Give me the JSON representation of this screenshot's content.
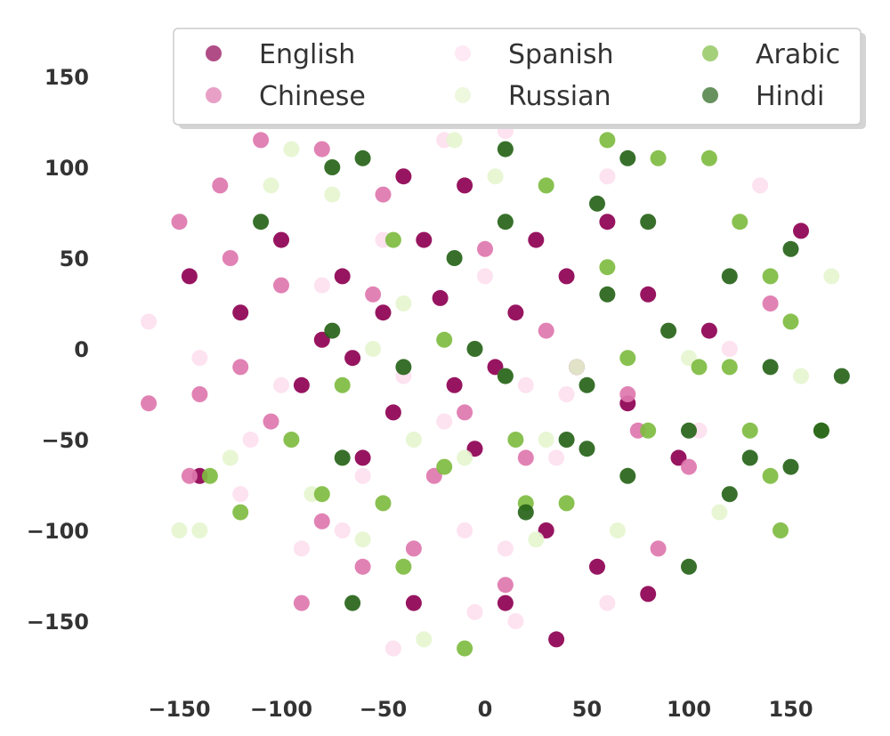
{
  "chart_data": {
    "type": "scatter",
    "title": "",
    "xlabel": "",
    "ylabel": "",
    "xlim": [
      -175,
      185
    ],
    "ylim": [
      -180,
      165
    ],
    "grid": false,
    "legend_position": "top",
    "x_ticks": [
      {
        "value": -150,
        "label": "−150"
      },
      {
        "value": -100,
        "label": "−100"
      },
      {
        "value": -50,
        "label": "−50"
      },
      {
        "value": 0,
        "label": "0"
      },
      {
        "value": 50,
        "label": "50"
      },
      {
        "value": 100,
        "label": "100"
      },
      {
        "value": 150,
        "label": "150"
      }
    ],
    "y_ticks": [
      {
        "value": 150,
        "label": "150"
      },
      {
        "value": 100,
        "label": "100"
      },
      {
        "value": 50,
        "label": "50"
      },
      {
        "value": 0,
        "label": "0"
      },
      {
        "value": -50,
        "label": "−50"
      },
      {
        "value": -100,
        "label": "−100"
      },
      {
        "value": -150,
        "label": "−150"
      }
    ],
    "series": [
      {
        "name": "English",
        "color": "#8e0152",
        "points": [
          [
            -65,
            -5
          ],
          [
            -30,
            60
          ],
          [
            -22,
            28
          ],
          [
            -5,
            -55
          ],
          [
            45,
            -10
          ],
          [
            -90,
            -20
          ],
          [
            -70,
            40
          ],
          [
            -45,
            -35
          ],
          [
            15,
            20
          ],
          [
            60,
            70
          ],
          [
            80,
            30
          ],
          [
            -120,
            20
          ],
          [
            -40,
            95
          ],
          [
            10,
            -140
          ],
          [
            30,
            -100
          ],
          [
            110,
            10
          ],
          [
            -60,
            -60
          ],
          [
            25,
            60
          ],
          [
            -10,
            90
          ],
          [
            70,
            -30
          ],
          [
            -100,
            60
          ],
          [
            5,
            -10
          ],
          [
            40,
            40
          ],
          [
            -35,
            -140
          ],
          [
            -80,
            5
          ],
          [
            -15,
            -20
          ],
          [
            55,
            -120
          ],
          [
            95,
            -60
          ],
          [
            -50,
            20
          ],
          [
            -145,
            40
          ],
          [
            155,
            65
          ],
          [
            -140,
            -70
          ],
          [
            35,
            -160
          ],
          [
            80,
            -135
          ]
        ]
      },
      {
        "name": "Chinese",
        "color": "#de77ae",
        "points": [
          [
            -120,
            -10
          ],
          [
            -100,
            35
          ],
          [
            -125,
            50
          ],
          [
            -140,
            -25
          ],
          [
            -110,
            115
          ],
          [
            -55,
            30
          ],
          [
            -25,
            -70
          ],
          [
            0,
            55
          ],
          [
            30,
            10
          ],
          [
            -80,
            -95
          ],
          [
            75,
            -45
          ],
          [
            100,
            -65
          ],
          [
            -145,
            -70
          ],
          [
            -90,
            -140
          ],
          [
            -60,
            -120
          ],
          [
            -35,
            -110
          ],
          [
            10,
            -130
          ],
          [
            85,
            -110
          ],
          [
            -10,
            -35
          ],
          [
            20,
            -60
          ],
          [
            70,
            -25
          ],
          [
            -150,
            70
          ],
          [
            -165,
            -30
          ],
          [
            -80,
            110
          ],
          [
            -50,
            85
          ],
          [
            140,
            25
          ],
          [
            -130,
            90
          ],
          [
            -105,
            -40
          ]
        ]
      },
      {
        "name": "Spanish",
        "color": "#fde0ef",
        "points": [
          [
            -100,
            -20
          ],
          [
            -80,
            35
          ],
          [
            -60,
            -70
          ],
          [
            -40,
            -15
          ],
          [
            -20,
            -40
          ],
          [
            0,
            40
          ],
          [
            20,
            -20
          ],
          [
            40,
            -25
          ],
          [
            -70,
            -100
          ],
          [
            -90,
            -110
          ],
          [
            -10,
            -100
          ],
          [
            10,
            -110
          ],
          [
            35,
            -60
          ],
          [
            -115,
            -50
          ],
          [
            -140,
            -5
          ],
          [
            -165,
            15
          ],
          [
            -20,
            115
          ],
          [
            10,
            120
          ],
          [
            -5,
            -145
          ],
          [
            15,
            -150
          ],
          [
            -45,
            -165
          ],
          [
            60,
            -140
          ],
          [
            120,
            0
          ],
          [
            135,
            90
          ],
          [
            105,
            -45
          ],
          [
            -120,
            -80
          ],
          [
            -50,
            60
          ],
          [
            60,
            95
          ]
        ]
      },
      {
        "name": "Russian",
        "color": "#e6f5d0",
        "points": [
          [
            -75,
            85
          ],
          [
            -105,
            90
          ],
          [
            -55,
            0
          ],
          [
            -35,
            -50
          ],
          [
            -10,
            -60
          ],
          [
            5,
            95
          ],
          [
            30,
            -50
          ],
          [
            45,
            -10
          ],
          [
            -85,
            -80
          ],
          [
            -140,
            -100
          ],
          [
            -30,
            -160
          ],
          [
            65,
            -100
          ],
          [
            100,
            -5
          ],
          [
            -40,
            25
          ],
          [
            10,
            -15
          ],
          [
            -95,
            110
          ],
          [
            -60,
            -105
          ],
          [
            25,
            -105
          ],
          [
            -125,
            -60
          ],
          [
            -150,
            -100
          ],
          [
            -15,
            115
          ],
          [
            115,
            -90
          ],
          [
            170,
            40
          ],
          [
            155,
            -15
          ]
        ]
      },
      {
        "name": "Arabic",
        "color": "#7fbc41",
        "points": [
          [
            60,
            115
          ],
          [
            110,
            105
          ],
          [
            125,
            70
          ],
          [
            140,
            40
          ],
          [
            150,
            15
          ],
          [
            120,
            -10
          ],
          [
            130,
            -45
          ],
          [
            140,
            -70
          ],
          [
            60,
            45
          ],
          [
            70,
            -5
          ],
          [
            80,
            -45
          ],
          [
            40,
            -85
          ],
          [
            -20,
            -65
          ],
          [
            -50,
            -85
          ],
          [
            -80,
            -80
          ],
          [
            -120,
            -90
          ],
          [
            -135,
            -70
          ],
          [
            -95,
            -50
          ],
          [
            -10,
            -165
          ],
          [
            -40,
            -120
          ],
          [
            15,
            -50
          ],
          [
            30,
            90
          ],
          [
            -45,
            60
          ],
          [
            -70,
            -20
          ],
          [
            -20,
            5
          ],
          [
            105,
            -10
          ],
          [
            85,
            105
          ],
          [
            165,
            -45
          ],
          [
            145,
            -100
          ],
          [
            20,
            -85
          ]
        ]
      },
      {
        "name": "Hindi",
        "color": "#276419",
        "points": [
          [
            70,
            105
          ],
          [
            80,
            70
          ],
          [
            55,
            80
          ],
          [
            10,
            70
          ],
          [
            -15,
            50
          ],
          [
            -40,
            -10
          ],
          [
            10,
            -15
          ],
          [
            40,
            -50
          ],
          [
            70,
            -70
          ],
          [
            100,
            -45
          ],
          [
            130,
            -60
          ],
          [
            140,
            -10
          ],
          [
            120,
            -80
          ],
          [
            100,
            -120
          ],
          [
            50,
            -55
          ],
          [
            -70,
            -60
          ],
          [
            -75,
            10
          ],
          [
            -110,
            70
          ],
          [
            -75,
            100
          ],
          [
            -60,
            105
          ],
          [
            10,
            110
          ],
          [
            -5,
            0
          ],
          [
            20,
            -90
          ],
          [
            50,
            -20
          ],
          [
            60,
            30
          ],
          [
            150,
            -65
          ],
          [
            175,
            -15
          ],
          [
            165,
            -45
          ],
          [
            150,
            55
          ],
          [
            -65,
            -140
          ],
          [
            90,
            10
          ],
          [
            120,
            40
          ]
        ]
      }
    ]
  }
}
